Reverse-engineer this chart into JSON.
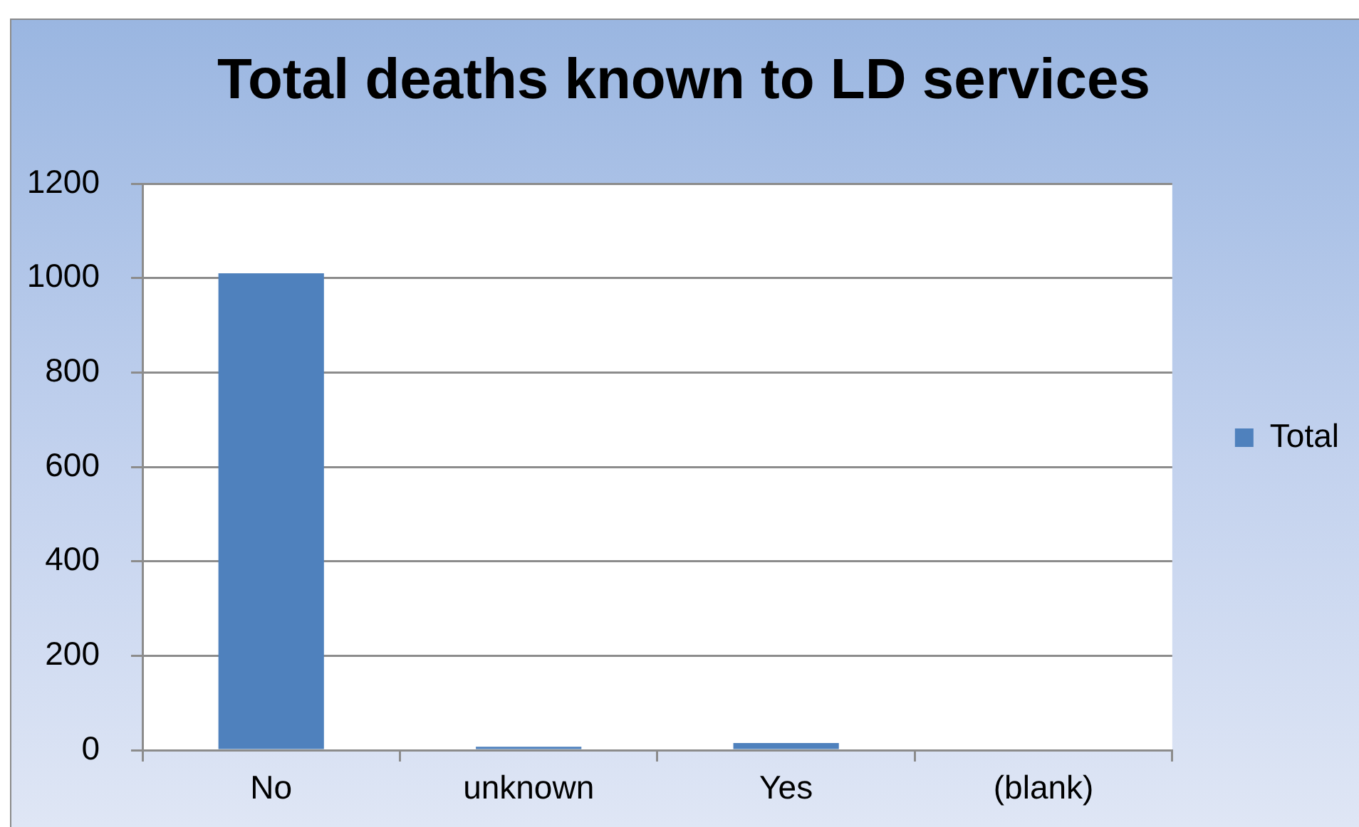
{
  "chart_data": {
    "type": "bar",
    "title": "Total deaths known to LD services",
    "categories": [
      "No",
      "unknown",
      "Yes",
      "(blank)"
    ],
    "series": [
      {
        "name": "Total",
        "color": "#4f81bd",
        "values": [
          1010,
          7,
          15,
          0
        ]
      }
    ],
    "ylim": [
      0,
      1200
    ],
    "yticks": [
      0,
      200,
      400,
      600,
      800,
      1000,
      1200
    ],
    "grid": "y",
    "legend": "right"
  }
}
